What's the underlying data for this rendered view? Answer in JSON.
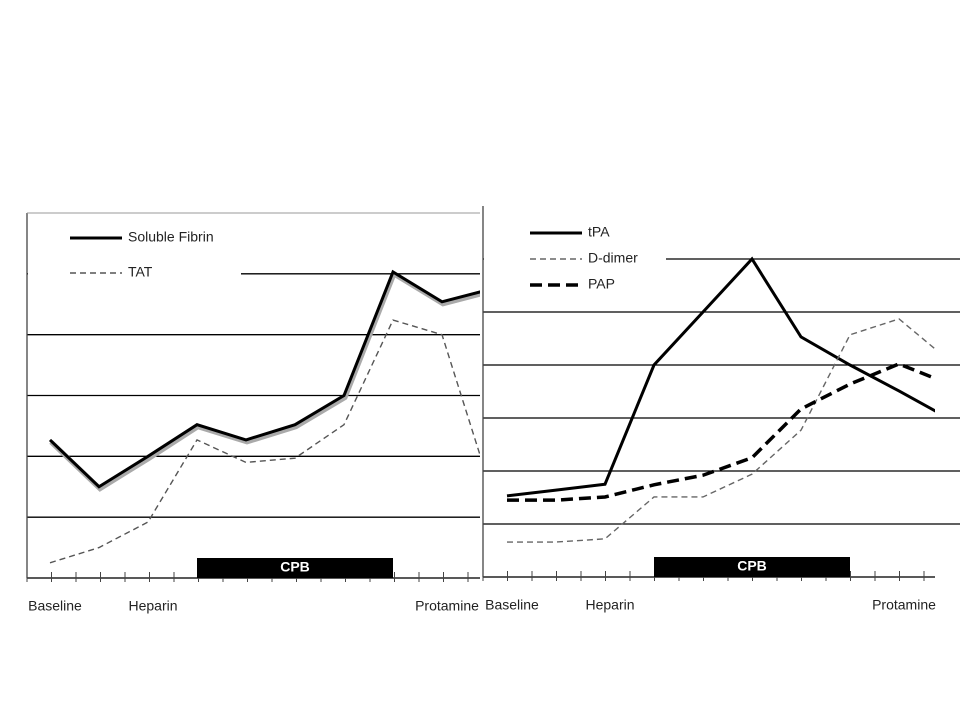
{
  "chart_data": [
    {
      "type": "line",
      "categories": [
        "Baseline",
        null,
        "Heparin",
        null,
        null,
        null,
        null,
        null,
        "Protamine",
        null
      ],
      "series": [
        {
          "name": "Soluble Fibrin",
          "color": "#000000",
          "linestyle": "solid",
          "values": [
            2.27,
            1.5,
            2.0,
            2.52,
            2.27,
            2.52,
            3.0,
            5.03,
            4.54,
            4.75
          ]
        },
        {
          "name": "TAT",
          "color": "#555555",
          "linestyle": "dashed",
          "values": [
            0.25,
            0.5,
            0.92,
            2.27,
            1.9,
            1.97,
            2.52,
            4.24,
            4.0,
            1.45
          ]
        }
      ],
      "ylim": [
        0,
        6
      ],
      "yticks": [
        1,
        2,
        3,
        4,
        5
      ],
      "grid": true,
      "legend": "upper left",
      "annotation": "CPB"
    },
    {
      "type": "line",
      "categories": [
        "Baseline",
        null,
        "Heparin",
        null,
        null,
        null,
        null,
        null,
        "Protamine",
        null
      ],
      "series": [
        {
          "name": "tPA",
          "color": "#000000",
          "linestyle": "solid",
          "values": [
            1.53,
            1.64,
            1.75,
            4.0,
            5.0,
            6.0,
            4.53,
            4.0,
            3.51,
            3.0
          ]
        },
        {
          "name": "D-dimer",
          "color": "#666666",
          "linestyle": "dashed",
          "values": [
            0.66,
            0.66,
            0.72,
            1.51,
            1.51,
            1.94,
            2.77,
            4.57,
            4.87,
            4.1
          ]
        },
        {
          "name": "PAP",
          "color": "#000000",
          "linestyle": "thick-dashed",
          "values": [
            1.45,
            1.45,
            1.51,
            1.74,
            1.92,
            2.25,
            3.17,
            3.64,
            4.02,
            3.65
          ]
        }
      ],
      "ylim": [
        0,
        7
      ],
      "yticks": [
        1,
        2,
        3,
        4,
        5,
        6
      ],
      "grid": true,
      "legend": "upper left",
      "annotation": "CPB"
    }
  ]
}
